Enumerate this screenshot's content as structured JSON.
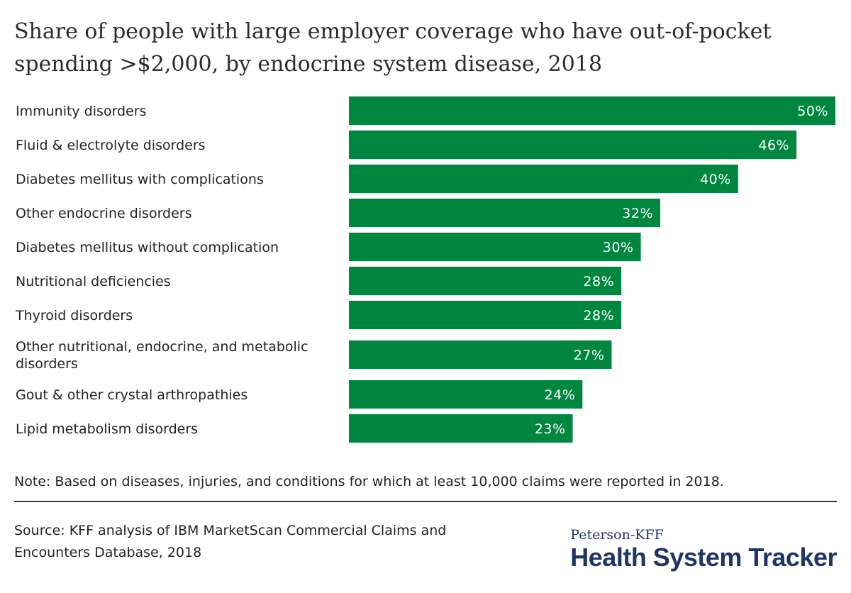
{
  "title": "Share of people with large employer coverage who have out-of-pocket spending >$2,000, by endocrine system disease, 2018",
  "note": "Note: Based on diseases, injuries, and conditions for which at least 10,000 claims were reported in 2018.",
  "source": "Source: KFF analysis of IBM MarketScan Commercial Claims and Encounters Database, 2018",
  "brand": {
    "top": "Peterson-KFF",
    "main": "Health System Tracker"
  },
  "colors": {
    "bar": "#00873f",
    "brand": "#1f3566"
  },
  "chart_data": {
    "type": "bar",
    "orientation": "horizontal",
    "title": "Share of people with large employer coverage who have out-of-pocket spending >$2,000, by endocrine system disease, 2018",
    "xlabel": "",
    "ylabel": "",
    "grid": false,
    "categories": [
      [
        "Immunity disorders"
      ],
      [
        "Fluid & electrolyte disorders"
      ],
      [
        "Diabetes mellitus with complications"
      ],
      [
        "Other endocrine disorders"
      ],
      [
        "Diabetes mellitus without complication"
      ],
      [
        "Nutritional deficiencies"
      ],
      [
        "Thyroid disorders"
      ],
      [
        "Other nutritional, endocrine, and metabolic",
        "disorders"
      ],
      [
        "Gout & other crystal arthropathies"
      ],
      [
        "Lipid metabolism disorders"
      ]
    ],
    "values": [
      50,
      46,
      40,
      32,
      30,
      28,
      28,
      27,
      24,
      23
    ],
    "value_labels": [
      "50%",
      "46%",
      "40%",
      "32%",
      "30%",
      "28%",
      "28%",
      "27%",
      "24%",
      "23%"
    ],
    "xlim": [
      0,
      50
    ]
  }
}
